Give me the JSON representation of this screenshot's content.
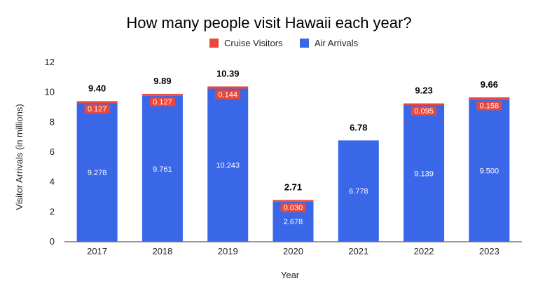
{
  "chart_data": {
    "type": "bar",
    "stacked": true,
    "title": "How many people visit Hawaii each year?",
    "xlabel": "Year",
    "ylabel": "Visitor Arrivals (in millions)",
    "ylim": [
      0,
      12
    ],
    "yticks": [
      "0",
      "2",
      "4",
      "6",
      "8",
      "10",
      "12"
    ],
    "grid": false,
    "legend_position": "top",
    "categories": [
      "2017",
      "2018",
      "2019",
      "2020",
      "2021",
      "2022",
      "2023"
    ],
    "series": [
      {
        "name": "Air Arrivals",
        "color": "#3a66e8",
        "values": [
          9.278,
          9.761,
          10.243,
          2.678,
          6.778,
          9.139,
          9.5
        ],
        "labels": [
          "9.278",
          "9.761",
          "10.243",
          "2.678",
          "6.778",
          "9.139",
          "9.500"
        ]
      },
      {
        "name": "Cruise Visitors",
        "color": "#e8483b",
        "values": [
          0.127,
          0.127,
          0.144,
          0.03,
          0,
          0.095,
          0.158
        ],
        "labels": [
          "0.127",
          "0.127",
          "0.144",
          "0.030",
          "",
          "0.095",
          "0.158"
        ]
      }
    ],
    "totals": [
      "9.40",
      "9.89",
      "10.39",
      "2.71",
      "6.78",
      "9.23",
      "9.66"
    ]
  }
}
